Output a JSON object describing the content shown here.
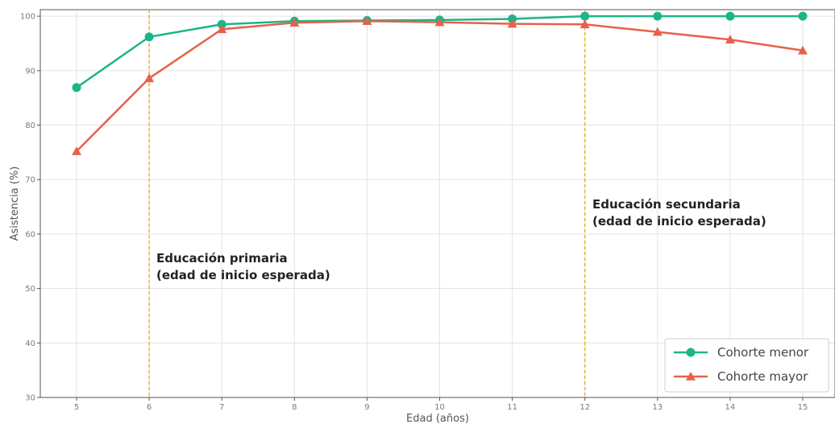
{
  "chart_data": {
    "type": "line",
    "xlabel": "Edad (años)",
    "ylabel": "Asistencia (%)",
    "xlim": [
      4.5,
      15.4
    ],
    "ylim": [
      30,
      101.2
    ],
    "x": [
      5,
      6,
      7,
      8,
      9,
      10,
      11,
      12,
      13,
      14,
      15
    ],
    "x_ticks": [
      "5",
      "6",
      "7",
      "8",
      "9",
      "10",
      "11",
      "12",
      "13",
      "14",
      "15"
    ],
    "y_ticks": [
      "30",
      "40",
      "50",
      "60",
      "70",
      "80",
      "90",
      "100"
    ],
    "grid": true,
    "legend_position": "bottom-right",
    "series": [
      {
        "name": "Cohorte menor",
        "color": "#1db587",
        "marker": "circle",
        "values": [
          86.9,
          96.2,
          98.5,
          99.1,
          99.2,
          99.3,
          99.5,
          100,
          100,
          100,
          100
        ]
      },
      {
        "name": "Cohorte mayor",
        "color": "#e8604a",
        "marker": "triangle",
        "values": [
          75.2,
          88.6,
          97.6,
          98.8,
          99.1,
          98.9,
          98.6,
          98.5,
          97.1,
          95.7,
          93.7
        ]
      }
    ],
    "vlines": [
      {
        "x": 6,
        "color": "#f2b01e",
        "label_lines": [
          "Educación primaria",
          "(edad de inicio esperada)"
        ]
      },
      {
        "x": 12,
        "color": "#f2b01e",
        "label_lines": [
          "Educación secundaria",
          "(edad de inicio esperada)"
        ]
      }
    ]
  }
}
